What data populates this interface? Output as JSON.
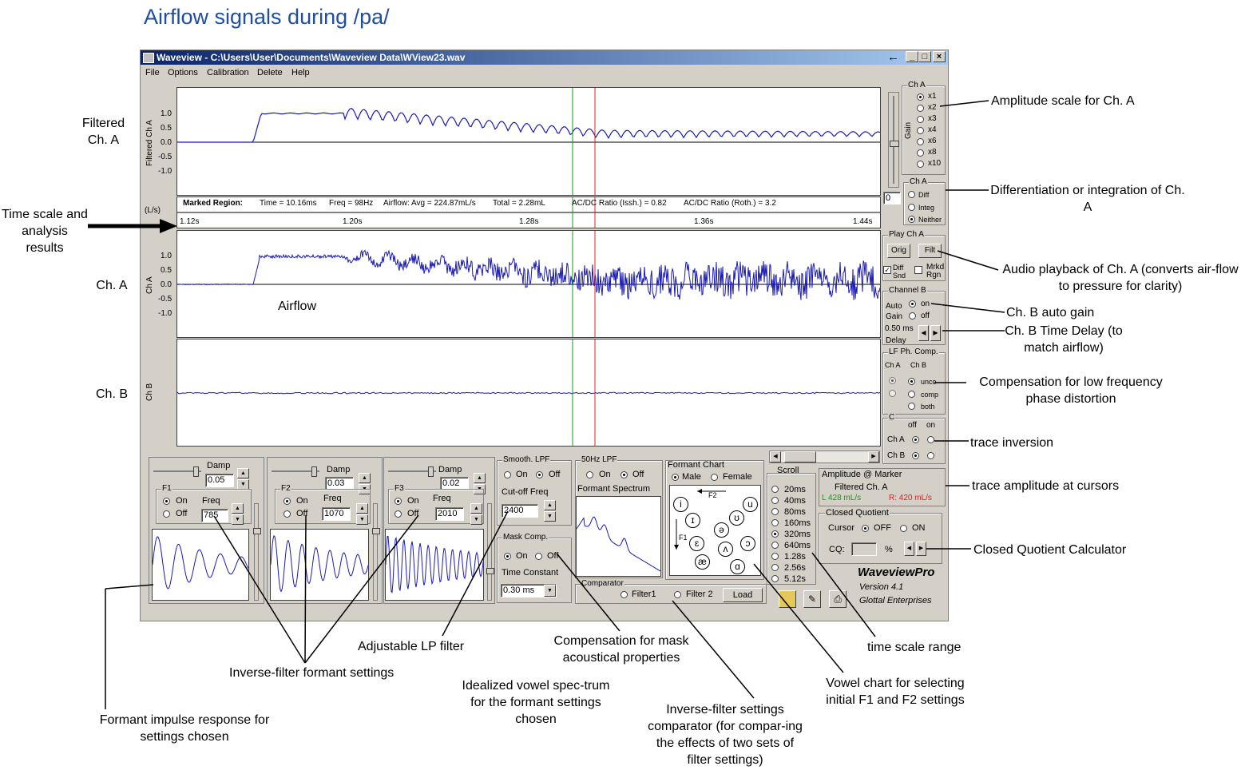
{
  "doc_title": "Airflow signals during /pa/",
  "window": {
    "title": "Waveview - C:\\Users\\User\\Documents\\Waveview Data\\WView23.wav",
    "minimize_label": "_",
    "maximize_label": "□",
    "close_label": "×",
    "arrow_label": "←",
    "menu": [
      "File",
      "Options",
      "Calibration",
      "Delete",
      "Help"
    ]
  },
  "panels": {
    "filtered_label": "Filtered Ch A",
    "cha_label": "Ch A",
    "chb_label": "Ch B",
    "y_ticks": [
      "1.0",
      "0.5",
      "0.0",
      "-0.5",
      "-1.0"
    ],
    "units": "(L/s)",
    "airflow_label": "Airflow",
    "time_ticks": [
      "1.12s",
      "1.20s",
      "1.28s",
      "1.36s",
      "1.44s"
    ]
  },
  "marked_region": {
    "label": "Marked Region:",
    "time": "Time = 10.16ms",
    "freq": "Freq = 98Hz",
    "airflow": "Airflow: Avg = 224.87mL/s",
    "total": "Total = 2.28mL",
    "issh": "AC/DC Ratio (Issh.) = 0.82",
    "roth": "AC/DC Ratio (Roth.) = 3.2"
  },
  "right_panel": {
    "gain_group": "Ch A",
    "gain_label": "Gain",
    "gain_options": [
      "x1",
      "x2",
      "x3",
      "x4",
      "x6",
      "x8",
      "x10"
    ],
    "gain_value": "0",
    "diff_group": "Ch A",
    "diff_options": [
      "Diff",
      "Integ",
      "Neither"
    ],
    "play_group": "Play Ch A",
    "orig_label": "Orig",
    "filt_label": "Filt",
    "diff_snd": "Diff Snd",
    "mrkd_rgn": "Mrkd Rgn",
    "chb_group": "Channel B",
    "auto_gain": "Auto Gain",
    "on_label": "on",
    "off_label": "off",
    "delay_value": "0.50 ms",
    "delay_label": "Delay",
    "lf_group": "LF Ph. Comp.",
    "lf_cha": "Ch A",
    "lf_chb": "Ch B",
    "lf_options": [
      "unco",
      "comp",
      "both"
    ],
    "inv_group": "C",
    "inv_off": "off",
    "inv_on": "on",
    "inv_cha": "Ch A",
    "inv_chb": "Ch B"
  },
  "bottom": {
    "damp_label": "Damp",
    "freq_label": "Freq",
    "on_label": "On",
    "off_label": "Off",
    "f1": {
      "name": "F1",
      "damp": "0.05",
      "freq": "785"
    },
    "f2": {
      "name": "F2",
      "damp": "0.03",
      "freq": "1070"
    },
    "f3": {
      "name": "F3",
      "damp": "0.02",
      "freq": "2010"
    },
    "smooth_group": "Smooth. LPF",
    "cutoff_label": "Cut-off Freq",
    "cutoff_value": "2400",
    "mask_group": "Mask Comp.",
    "time_const_label": "Time Constant",
    "time_const_value": "0.30 ms",
    "lpf50_group": "50Hz LPF",
    "spectrum_label": "Formant Spectrum",
    "chart_label": "Formant Chart",
    "male": "Male",
    "female": "Female",
    "f2_axis": "F2",
    "f1_axis": "F1",
    "vowels": [
      "i",
      "u",
      "ɪ",
      "ʊ",
      "ə",
      "ɛ",
      "ʌ",
      "ɔ",
      "æ",
      "ɑ"
    ],
    "comparator_group": "Comparator",
    "filter1": "Filter1",
    "filter2": "Filter 2",
    "load_label": "Load",
    "scroll_label": "Scroll",
    "scroll_options": [
      "20ms",
      "40ms",
      "80ms",
      "160ms",
      "320ms",
      "640ms",
      "1.28s",
      "2.56s",
      "5.12s"
    ],
    "amp_title": "Amplitude @ Marker",
    "amp_sub": "Filtered Ch. A",
    "amp_left": "L 428 mL/s",
    "amp_right": "R: 420 mL/s",
    "cq_group": "Closed Quotient",
    "cursor_label": "Cursor",
    "cq_off": "OFF",
    "cq_on": "ON",
    "cq_label": "CQ:",
    "percent": "%",
    "brand": "WaveviewPro",
    "version": "Version 4.1",
    "company": "Glottal Enterprises"
  },
  "annotations": {
    "filtered": "Filtered Ch. A",
    "time_scale": "Time scale and analysis results",
    "cha": "Ch. A",
    "chb": "Ch. B",
    "amp_scale": "Amplitude scale for Ch. A",
    "diff_integ": "Differentiation or integration of Ch. A",
    "audio": "Audio playback of Ch. A (converts air-flow to pressure for clarity)",
    "auto_gain": "Ch. B auto gain",
    "time_delay": "Ch. B Time Delay (to match airflow)",
    "lf_comp": "Compensation for low frequency phase distortion",
    "inversion": "trace inversion",
    "trace_amp": "trace amplitude at cursors",
    "cq_calc": "Closed Quotient Calculator",
    "time_range": "time scale range",
    "vowel_chart": "Vowel chart for selecting initial F1 and F2 settings",
    "comparator": "Inverse-filter settings comparator (for compar-ing the effects of two sets of filter settings)",
    "spectrum": "Idealized vowel spec-trum for the formant settings chosen",
    "mask": "Compensation for mask acoustical properties",
    "lp_filter": "Adjustable LP filter",
    "formant_settings": "Inverse-filter formant settings",
    "impulse": "Formant impulse response for settings chosen"
  },
  "colors": {
    "trace": "#1a1ab4",
    "cursor_left": "#1a9a1a",
    "cursor_right": "#e02020",
    "title": "#1f4ea3"
  }
}
